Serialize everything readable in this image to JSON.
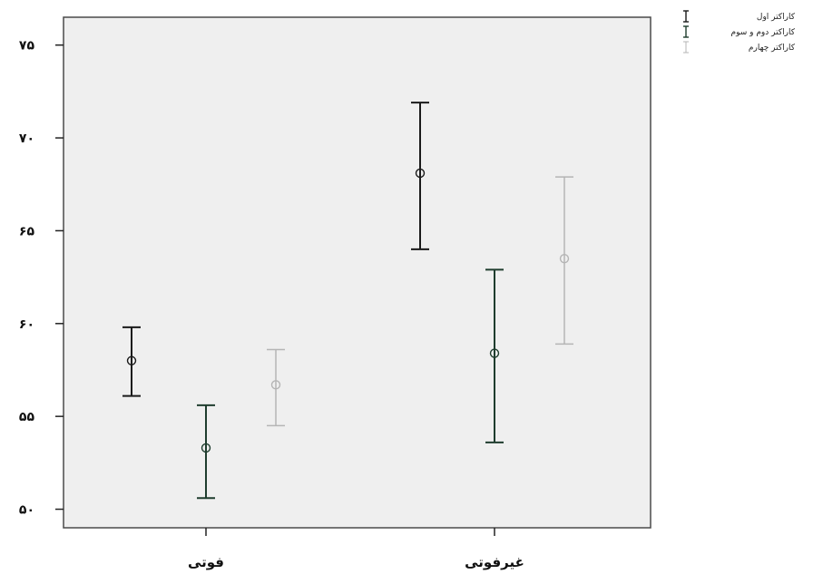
{
  "chart_data": {
    "type": "errorbar",
    "categories": [
      "فوتی",
      "غیرفوتی"
    ],
    "ylim": [
      49,
      76.5
    ],
    "y_ticks": [
      50,
      55,
      60,
      65,
      70,
      75
    ],
    "y_tick_labels": [
      "۵۰",
      "۵۵",
      "۶۰",
      "۶۵",
      "۷۰",
      "۷۵"
    ],
    "series": [
      {
        "name": "کاراکتر اول",
        "color": "#1a1a1a",
        "points": [
          {
            "mean": 58.0,
            "lower": 56.1,
            "upper": 59.8
          },
          {
            "mean": 68.1,
            "lower": 64.0,
            "upper": 71.9
          }
        ]
      },
      {
        "name": "کاراکتر دوم و سوم",
        "color": "#1f3d2e",
        "points": [
          {
            "mean": 53.3,
            "lower": 50.6,
            "upper": 55.6
          },
          {
            "mean": 58.4,
            "lower": 53.6,
            "upper": 62.9
          }
        ]
      },
      {
        "name": "کاراکتر چهارم",
        "color": "#b5b5b5",
        "points": [
          {
            "mean": 56.7,
            "lower": 54.5,
            "upper": 58.6
          },
          {
            "mean": 63.5,
            "lower": 58.9,
            "upper": 67.9
          }
        ]
      }
    ]
  }
}
